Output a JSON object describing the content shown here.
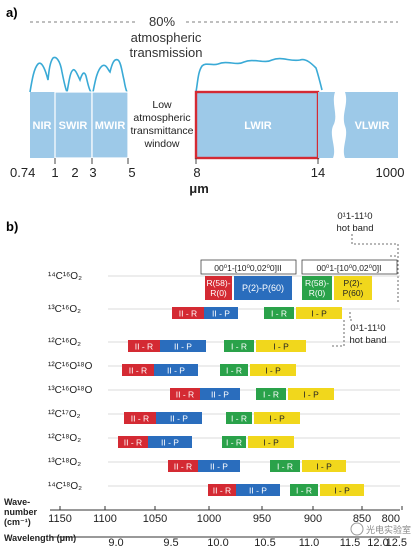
{
  "panel_a": {
    "label": "a)",
    "transmission_percent": "80%",
    "transmission_text_1": "atmospheric",
    "transmission_text_2": "transmission",
    "bands": [
      {
        "label": "NIR",
        "from": 0.74,
        "to": 1
      },
      {
        "label": "SWIR",
        "from": 1,
        "to": 2
      },
      {
        "label": "MWIR",
        "from": 2,
        "to": 3
      },
      {
        "label": "LWIR",
        "from": 8,
        "to": 14
      },
      {
        "label": "VLWIR",
        "from": 14,
        "to": 1000
      }
    ],
    "window_text": [
      "Low",
      "atmospheric",
      "transmittance",
      "window"
    ],
    "axis_ticks": [
      "0.74",
      "1",
      "2",
      "3",
      "5",
      "8",
      "14",
      "1000"
    ],
    "axis_unit": "μm"
  },
  "panel_b": {
    "label": "b)",
    "hot_band_top": {
      "line1": "0¹1-11¹0",
      "line2": "hot band"
    },
    "hot_band_mid": {
      "line1": "0¹1-11¹0",
      "line2": "hot band"
    },
    "bracket_left": "00⁰1-[10⁰0,02⁰0]II",
    "bracket_right": "00⁰1-[10⁰0,02⁰0]I",
    "box_labels": {
      "r58_r0": [
        "R(58)-",
        "R(0)"
      ],
      "p2_p60_single": "P(2)-P(60)",
      "p2_p60_split": [
        "P(2)-",
        "P(60)"
      ]
    },
    "isotopes": [
      {
        "name": "¹⁴C¹⁶O₂"
      },
      {
        "name": "¹³C¹⁶O₂"
      },
      {
        "name": "¹²C¹⁶O₂"
      },
      {
        "name": "¹²C¹⁶O¹⁸O"
      },
      {
        "name": "¹³C¹⁶O¹⁸O"
      },
      {
        "name": "¹²C¹⁷O₂"
      },
      {
        "name": "¹²C¹⁸O₂"
      },
      {
        "name": "¹³C¹⁸O₂"
      },
      {
        "name": "¹⁴C¹⁸O₂"
      }
    ],
    "band_labels": {
      "IIR": "II - R",
      "IIP": "II - P",
      "IR": "I - R",
      "IP": "I - P"
    },
    "colors": {
      "IIR": "#d42a33",
      "IIP": "#2a6dbd",
      "IR": "#2aa24a",
      "IP": "#f1d71c"
    },
    "wavenumber_label": [
      "Wave-",
      "number",
      "(cm⁻¹)"
    ],
    "wavenumber_ticks": [
      "1150",
      "1100",
      "1050",
      "1000",
      "950",
      "900",
      "850",
      "800"
    ],
    "wavelength_label": "Wavelength (μm)",
    "wavelength_ticks": [
      "9.0",
      "9.5",
      "10.0",
      "10.5",
      "11.0",
      "11.5",
      "12.0",
      "12.5"
    ]
  },
  "watermark": "光电实验室"
}
